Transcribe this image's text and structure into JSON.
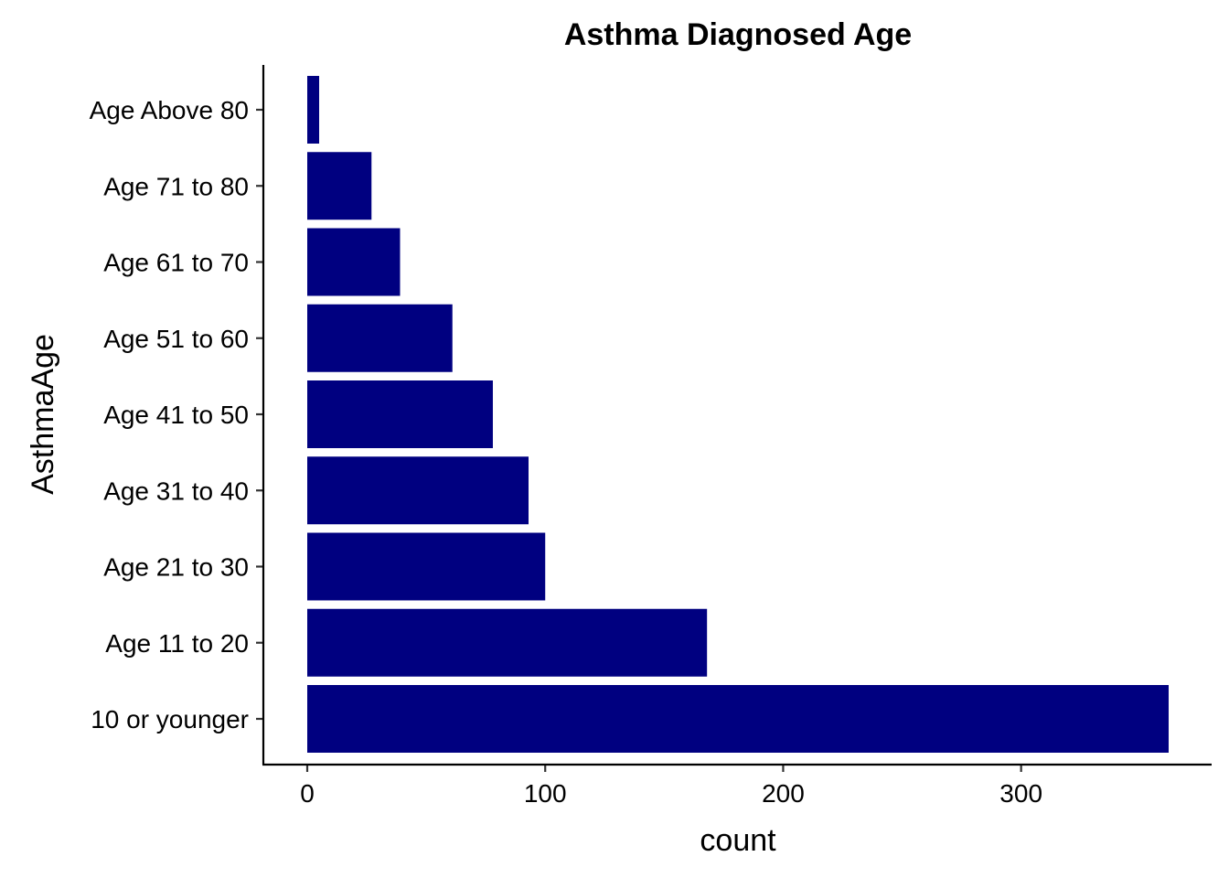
{
  "chart_data": {
    "type": "bar",
    "orientation": "horizontal",
    "title": "Asthma Diagnosed Age",
    "xlabel": "count",
    "ylabel": "AsthmaAge",
    "categories": [
      "10 or younger",
      "Age 11 to 20",
      "Age 21 to 30",
      "Age 31 to 40",
      "Age 41 to 50",
      "Age 51 to 60",
      "Age 61 to 70",
      "Age 71 to 80",
      "Age Above 80"
    ],
    "values": [
      362,
      168,
      100,
      93,
      78,
      61,
      39,
      27,
      5
    ],
    "xlim": [
      -18,
      362
    ],
    "xticks": [
      0,
      100,
      200,
      300
    ],
    "bar_color": "#000080",
    "grid": false,
    "legend": "none"
  }
}
